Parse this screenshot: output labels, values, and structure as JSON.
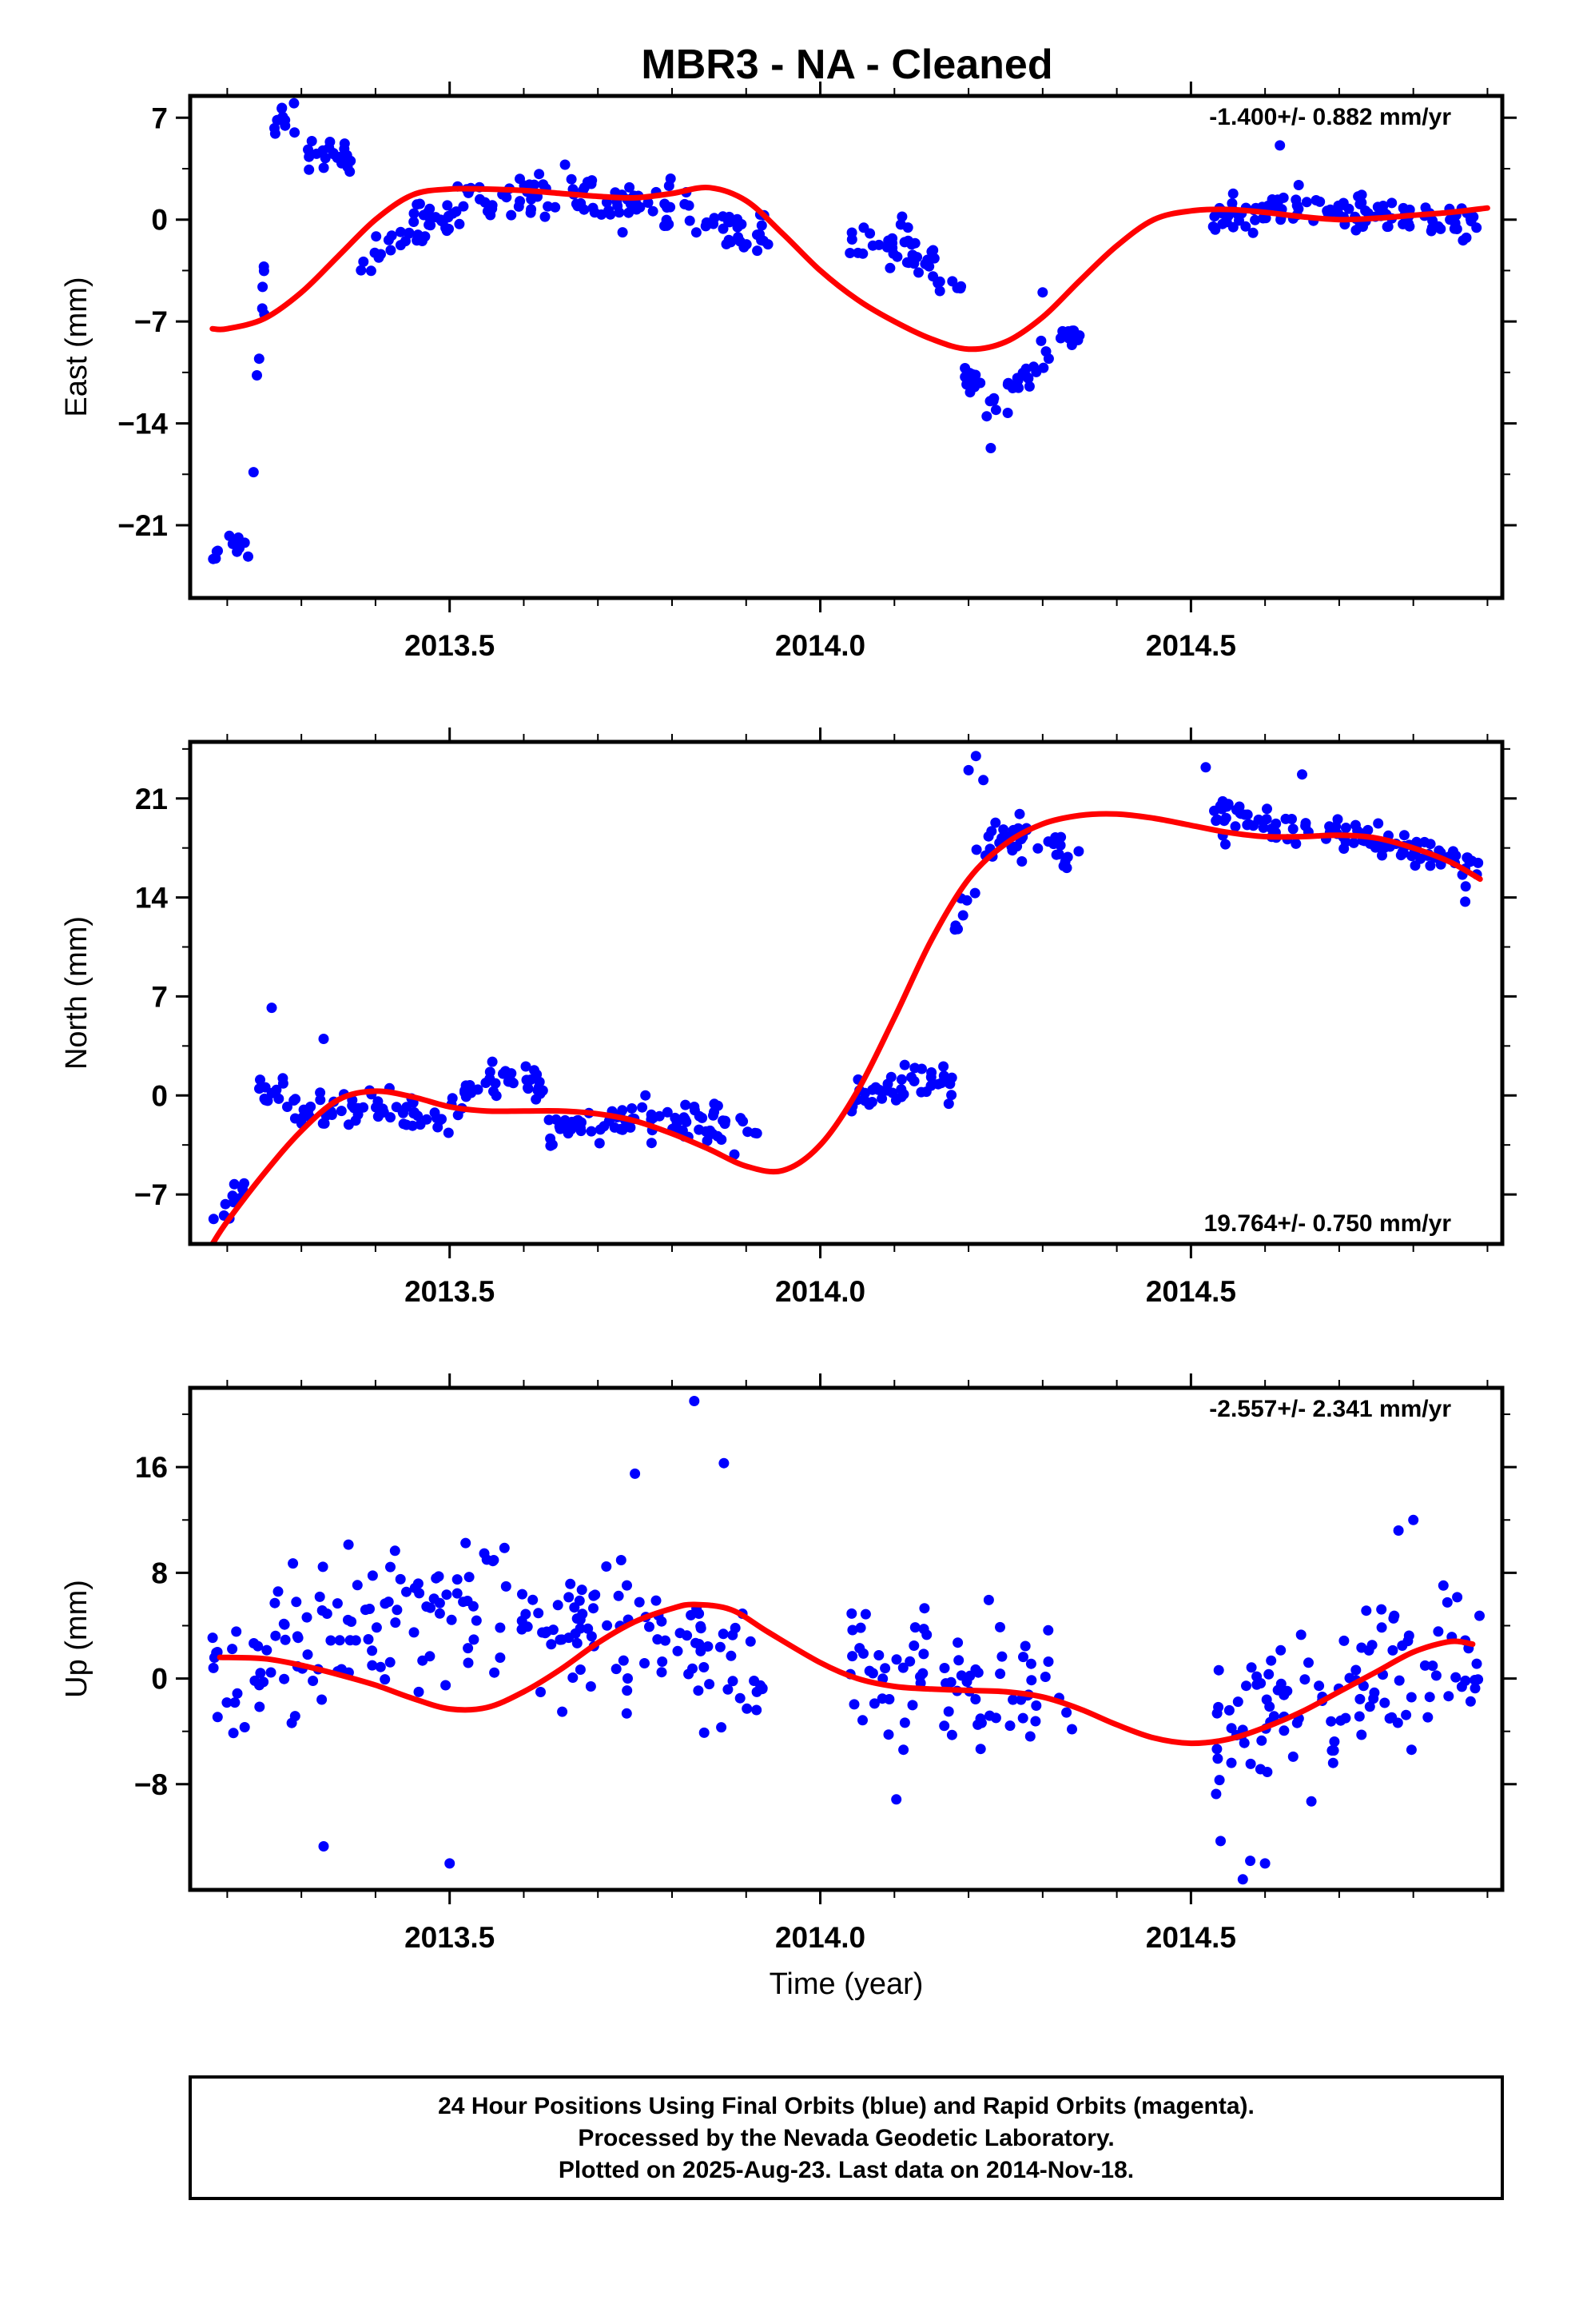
{
  "title": "MBR3  - NA - Cleaned",
  "footer": {
    "line1": "24 Hour Positions Using Final Orbits (blue) and Rapid Orbits (magenta).",
    "line2": "Processed by the Nevada Geodetic Laboratory.",
    "line3": "Plotted on 2025-Aug-23. Last data on 2014-Nov-18."
  },
  "colors": {
    "points": "#0000ff",
    "fit": "#ff0000",
    "frame": "#000000"
  },
  "chart_data": [
    {
      "type": "scatter",
      "ylabel": "East (mm)",
      "xlabel": "",
      "rate": "-1.400+/- 0.882 mm/yr",
      "rate_position": "top-right",
      "xlim": [
        2013.15,
        2014.92
      ],
      "ylim": [
        -26,
        8.5
      ],
      "yticks": [
        -21,
        -14,
        -7,
        0,
        7
      ],
      "xticks": [
        2013.5,
        2014.0,
        2014.5
      ],
      "fit": [
        [
          2013.18,
          -7.5
        ],
        [
          2013.2,
          -7.5
        ],
        [
          2013.25,
          -6.8
        ],
        [
          2013.3,
          -5
        ],
        [
          2013.35,
          -2.5
        ],
        [
          2013.4,
          0
        ],
        [
          2013.45,
          1.7
        ],
        [
          2013.5,
          2.1
        ],
        [
          2013.55,
          2.1
        ],
        [
          2013.6,
          2
        ],
        [
          2013.65,
          1.8
        ],
        [
          2013.7,
          1.6
        ],
        [
          2013.75,
          1.5
        ],
        [
          2013.8,
          1.8
        ],
        [
          2013.85,
          2.2
        ],
        [
          2013.9,
          1.3
        ],
        [
          2013.95,
          -1
        ],
        [
          2014.0,
          -3.5
        ],
        [
          2014.05,
          -5.5
        ],
        [
          2014.1,
          -7
        ],
        [
          2014.15,
          -8.2
        ],
        [
          2014.2,
          -8.9
        ],
        [
          2014.25,
          -8.4
        ],
        [
          2014.3,
          -6.7
        ],
        [
          2014.35,
          -4.2
        ],
        [
          2014.4,
          -1.8
        ],
        [
          2014.45,
          0
        ],
        [
          2014.5,
          0.6
        ],
        [
          2014.55,
          0.7
        ],
        [
          2014.6,
          0.5
        ],
        [
          2014.65,
          0.2
        ],
        [
          2014.7,
          0
        ],
        [
          2014.75,
          0.1
        ],
        [
          2014.8,
          0.3
        ],
        [
          2014.85,
          0.5
        ],
        [
          2014.9,
          0.8
        ]
      ],
      "segments": [
        {
          "x0": 2013.18,
          "x1": 2013.23,
          "y0": -23.2,
          "y1": -23.2,
          "amp": 0.8,
          "sd": 0.6,
          "n": 12
        },
        {
          "x0": 2013.235,
          "x1": 2013.255,
          "y0": -18,
          "y1": 2,
          "amp": 0,
          "sd": 1.2,
          "n": 6
        },
        {
          "x0": 2013.26,
          "x1": 2013.3,
          "y0": 7,
          "y1": 5,
          "amp": 0.8,
          "sd": 0.8,
          "n": 10
        },
        {
          "x0": 2013.3,
          "x1": 2013.37,
          "y0": 4.5,
          "y1": 3.5,
          "amp": 0.6,
          "sd": 0.9,
          "n": 22
        },
        {
          "x0": 2013.38,
          "x1": 2013.5,
          "y0": -3.5,
          "y1": 0,
          "amp": 0.8,
          "sd": 1.1,
          "n": 40
        },
        {
          "x0": 2013.5,
          "x1": 2013.93,
          "y0": 1,
          "y1": -1,
          "amp": 1.5,
          "sd": 1.2,
          "n": 120
        },
        {
          "x0": 2014.04,
          "x1": 2014.19,
          "y0": -1,
          "y1": -5,
          "amp": 1,
          "sd": 1.1,
          "n": 45
        },
        {
          "x0": 2014.19,
          "x1": 2014.24,
          "y0": -10,
          "y1": -14,
          "amp": 0.5,
          "sd": 1,
          "n": 16
        },
        {
          "x0": 2014.24,
          "x1": 2014.35,
          "y0": -13,
          "y1": -7.5,
          "amp": 0.5,
          "sd": 0.9,
          "n": 32
        },
        {
          "x0": 2014.53,
          "x1": 2014.89,
          "y0": 0.2,
          "y1": -0.5,
          "amp": 0.8,
          "sd": 1,
          "n": 110
        }
      ],
      "extra": [
        [
          2013.29,
          8
        ],
        [
          2014.23,
          -15.7
        ],
        [
          2014.62,
          5.1
        ],
        [
          2013.25,
          -6.5
        ],
        [
          2013.24,
          -10.7
        ],
        [
          2014.3,
          -5
        ]
      ]
    },
    {
      "type": "scatter",
      "ylabel": "North (mm)",
      "xlabel": "",
      "rate": "19.764+/- 0.750 mm/yr",
      "rate_position": "bottom-right",
      "xlim": [
        2013.15,
        2014.92
      ],
      "ylim": [
        -10.5,
        25
      ],
      "yticks": [
        -7,
        0,
        7,
        14,
        21
      ],
      "xticks": [
        2013.5,
        2014.0,
        2014.5
      ],
      "fit": [
        [
          2013.18,
          -10.5
        ],
        [
          2013.2,
          -8.9
        ],
        [
          2013.25,
          -5.5
        ],
        [
          2013.3,
          -2.5
        ],
        [
          2013.35,
          -0.3
        ],
        [
          2013.4,
          0.3
        ],
        [
          2013.45,
          -0.1
        ],
        [
          2013.5,
          -0.8
        ],
        [
          2013.55,
          -1.1
        ],
        [
          2013.6,
          -1.1
        ],
        [
          2013.65,
          -1.1
        ],
        [
          2013.7,
          -1.3
        ],
        [
          2013.75,
          -1.8
        ],
        [
          2013.8,
          -2.7
        ],
        [
          2013.85,
          -3.8
        ],
        [
          2013.9,
          -5
        ],
        [
          2013.95,
          -5.3
        ],
        [
          2014.0,
          -3.5
        ],
        [
          2014.05,
          0.3
        ],
        [
          2014.1,
          5.5
        ],
        [
          2014.15,
          11
        ],
        [
          2014.2,
          15.3
        ],
        [
          2014.25,
          17.8
        ],
        [
          2014.3,
          19.2
        ],
        [
          2014.35,
          19.8
        ],
        [
          2014.4,
          19.9
        ],
        [
          2014.45,
          19.6
        ],
        [
          2014.5,
          19.1
        ],
        [
          2014.55,
          18.6
        ],
        [
          2014.6,
          18.3
        ],
        [
          2014.65,
          18.3
        ],
        [
          2014.7,
          18.4
        ],
        [
          2014.75,
          18.2
        ],
        [
          2014.8,
          17.5
        ],
        [
          2014.85,
          16.5
        ],
        [
          2014.89,
          15.3
        ]
      ],
      "segments": [
        {
          "x0": 2013.18,
          "x1": 2013.23,
          "y0": -9,
          "y1": -6,
          "amp": 0,
          "sd": 0.8,
          "n": 12
        },
        {
          "x0": 2013.24,
          "x1": 2013.3,
          "y0": 0.5,
          "y1": -1,
          "amp": 0.5,
          "sd": 1.2,
          "n": 16
        },
        {
          "x0": 2013.3,
          "x1": 2013.5,
          "y0": -1.5,
          "y1": -1.5,
          "amp": 0.5,
          "sd": 0.9,
          "n": 55
        },
        {
          "x0": 2013.5,
          "x1": 2013.63,
          "y0": -0.5,
          "y1": 0.5,
          "amp": 1.2,
          "sd": 1,
          "n": 38
        },
        {
          "x0": 2013.63,
          "x1": 2013.93,
          "y0": -2.5,
          "y1": -2.8,
          "amp": 0.8,
          "sd": 1,
          "n": 85
        },
        {
          "x0": 2014.04,
          "x1": 2014.18,
          "y0": -1,
          "y1": 1,
          "amp": 0.7,
          "sd": 1,
          "n": 42
        },
        {
          "x0": 2014.18,
          "x1": 2014.24,
          "y0": 11,
          "y1": 20,
          "amp": 0,
          "sd": 1.5,
          "n": 14
        },
        {
          "x0": 2014.24,
          "x1": 2014.35,
          "y0": 18,
          "y1": 17,
          "amp": 0.5,
          "sd": 0.9,
          "n": 32
        },
        {
          "x0": 2014.53,
          "x1": 2014.89,
          "y0": 19.7,
          "y1": 16,
          "amp": 0.6,
          "sd": 0.9,
          "n": 110
        }
      ],
      "extra": [
        [
          2013.26,
          6.2
        ],
        [
          2014.21,
          24
        ],
        [
          2014.52,
          23.2
        ],
        [
          2014.65,
          22.7
        ],
        [
          2013.33,
          4
        ],
        [
          2014.2,
          23
        ],
        [
          2014.22,
          22.3
        ],
        [
          2014.87,
          13.7
        ]
      ]
    },
    {
      "type": "scatter",
      "ylabel": "Up (mm)",
      "xlabel": "Time (year)",
      "rate": "-2.557+/- 2.341 mm/yr",
      "rate_position": "top-right",
      "xlim": [
        2013.15,
        2014.92
      ],
      "ylim": [
        -16,
        22
      ],
      "yticks": [
        -8,
        0,
        8,
        16
      ],
      "xticks": [
        2013.5,
        2014.0,
        2014.5
      ],
      "fit": [
        [
          2013.19,
          1.6
        ],
        [
          2013.25,
          1.5
        ],
        [
          2013.3,
          1
        ],
        [
          2013.35,
          0.3
        ],
        [
          2013.4,
          -0.5
        ],
        [
          2013.45,
          -1.5
        ],
        [
          2013.5,
          -2.3
        ],
        [
          2013.55,
          -2.2
        ],
        [
          2013.6,
          -1
        ],
        [
          2013.65,
          0.7
        ],
        [
          2013.7,
          2.7
        ],
        [
          2013.75,
          4.3
        ],
        [
          2013.8,
          5.3
        ],
        [
          2013.83,
          5.6
        ],
        [
          2013.88,
          5.2
        ],
        [
          2013.93,
          3.5
        ],
        [
          2014.0,
          1.2
        ],
        [
          2014.05,
          0
        ],
        [
          2014.1,
          -0.6
        ],
        [
          2014.15,
          -0.8
        ],
        [
          2014.2,
          -0.9
        ],
        [
          2014.25,
          -1
        ],
        [
          2014.3,
          -1.4
        ],
        [
          2014.35,
          -2.3
        ],
        [
          2014.4,
          -3.5
        ],
        [
          2014.45,
          -4.5
        ],
        [
          2014.5,
          -4.9
        ],
        [
          2014.55,
          -4.6
        ],
        [
          2014.6,
          -3.7
        ],
        [
          2014.65,
          -2.5
        ],
        [
          2014.7,
          -1
        ],
        [
          2014.75,
          0.5
        ],
        [
          2014.8,
          2
        ],
        [
          2014.85,
          2.8
        ],
        [
          2014.88,
          2.6
        ]
      ],
      "segments": [
        {
          "x0": 2013.18,
          "x1": 2013.93,
          "y0": 0,
          "y1": 0,
          "amp": 5.5,
          "sd": 3.6,
          "n": 210
        },
        {
          "x0": 2014.04,
          "x1": 2014.35,
          "y0": 0,
          "y1": -1.5,
          "amp": 0,
          "sd": 3.5,
          "n": 80
        },
        {
          "x0": 2014.53,
          "x1": 2014.89,
          "y0": -5,
          "y1": 2,
          "amp": 0,
          "sd": 3.8,
          "n": 110
        }
      ],
      "extra": [
        [
          2013.83,
          21
        ],
        [
          2013.87,
          16.3
        ],
        [
          2013.75,
          15.5
        ],
        [
          2013.33,
          -12.7
        ],
        [
          2013.5,
          -14
        ],
        [
          2014.57,
          -15.2
        ],
        [
          2014.58,
          -13.8
        ],
        [
          2014.6,
          -14
        ],
        [
          2014.54,
          -12.3
        ],
        [
          2014.8,
          12
        ],
        [
          2014.78,
          11.2
        ]
      ]
    }
  ]
}
